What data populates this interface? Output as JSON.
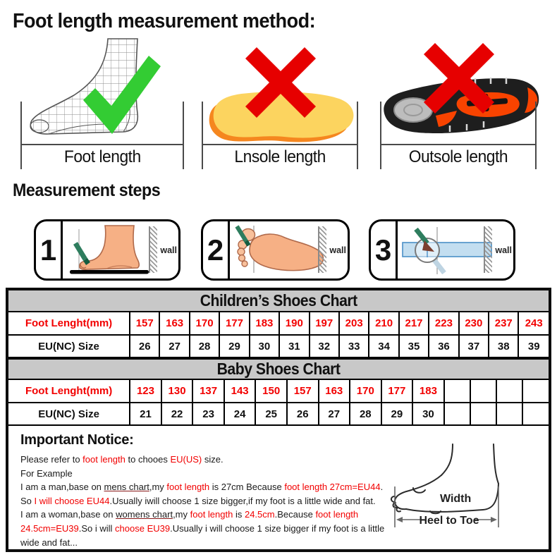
{
  "palette": {
    "red": "#f20000",
    "gray": "#c8c8c8",
    "green": "#33cc33",
    "cross": "#e60000"
  },
  "title": "Foot length measurement method:",
  "methods": [
    {
      "label": "Foot length",
      "mark": "check-icon"
    },
    {
      "label": "Lnsole length",
      "mark": "cross-icon"
    },
    {
      "label": "Outsole length",
      "mark": "cross-icon"
    }
  ],
  "steps_heading": "Measurement steps",
  "steps": [
    {
      "number": "1",
      "wall_label": "wall"
    },
    {
      "number": "2",
      "wall_label": "wall"
    },
    {
      "number": "3",
      "wall_label": "wall"
    }
  ],
  "charts": [
    {
      "title": "Children’s Shoes Chart",
      "rows": [
        {
          "label": "Foot Lenght(mm)",
          "color": "red",
          "values": [
            "157",
            "163",
            "170",
            "177",
            "183",
            "190",
            "197",
            "203",
            "210",
            "217",
            "223",
            "230",
            "237",
            "243"
          ]
        },
        {
          "label": "EU(NC) Size",
          "color": "black",
          "values": [
            "26",
            "27",
            "28",
            "29",
            "30",
            "31",
            "32",
            "33",
            "34",
            "35",
            "36",
            "37",
            "38",
            "39"
          ]
        }
      ]
    },
    {
      "title": "Baby Shoes Chart",
      "rows": [
        {
          "label": "Foot Lenght(mm)",
          "color": "red",
          "values": [
            "123",
            "130",
            "137",
            "143",
            "150",
            "157",
            "163",
            "170",
            "177",
            "183",
            "",
            "",
            "",
            ""
          ]
        },
        {
          "label": "EU(NC) Size",
          "color": "black",
          "values": [
            "21",
            "22",
            "23",
            "24",
            "25",
            "26",
            "27",
            "28",
            "29",
            "30",
            "",
            "",
            "",
            ""
          ]
        }
      ]
    }
  ],
  "notice": {
    "heading": "Important Notice:",
    "lines": [
      [
        {
          "t": "Please refer to "
        },
        {
          "t": "foot length",
          "red": true
        },
        {
          "t": " to chooes "
        },
        {
          "t": "EU(US)",
          "red": true
        },
        {
          "t": " size."
        }
      ],
      [
        {
          "t": "For Example"
        }
      ],
      [
        {
          "t": "I am a man,base on "
        },
        {
          "t": "mens chart",
          "u": true
        },
        {
          "t": ",my "
        },
        {
          "t": "foot length",
          "red": true
        },
        {
          "t": " is 27cm Because "
        },
        {
          "t": "foot length 27cm=EU44",
          "red": true
        },
        {
          "t": "."
        }
      ],
      [
        {
          "t": "So "
        },
        {
          "t": "I will choose EU44",
          "red": true
        },
        {
          "t": ".Usually iwill choose 1 size bigger,if my foot is a little wide and fat."
        }
      ],
      [
        {
          "t": "I am a woman,base on "
        },
        {
          "t": "womens chart",
          "u": true
        },
        {
          "t": ",my "
        },
        {
          "t": "foot length",
          "red": true
        },
        {
          "t": " is "
        },
        {
          "t": "24.5cm",
          "red": true
        },
        {
          "t": ".Because "
        },
        {
          "t": "foot length",
          "red": true
        }
      ],
      [
        {
          "t": "24.5cm=EU39",
          "red": true
        },
        {
          "t": ".So i will "
        },
        {
          "t": "choose EU39",
          "red": true
        },
        {
          "t": ".Usually i will choose 1 size bigger if my foot is a little"
        }
      ],
      [
        {
          "t": "wide and fat..."
        }
      ]
    ],
    "diagram": {
      "width_label": "Width",
      "heel_label": "Heel to Toe"
    }
  }
}
